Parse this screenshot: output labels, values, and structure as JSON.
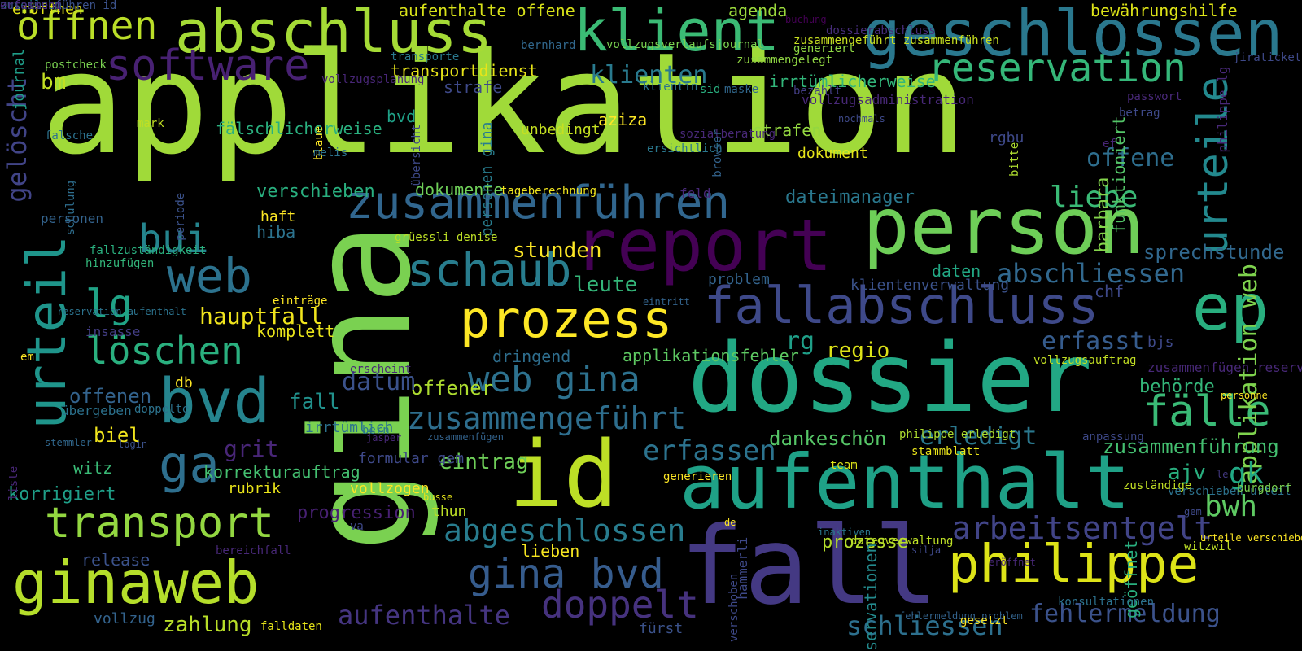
{
  "words": [
    {
      "text": "applikation",
      "color": "#a0da39",
      "rot": 0
    },
    {
      "text": "gina",
      "color": "#7ad151",
      "rot": 90
    },
    {
      "text": "person",
      "color": "#6ece58",
      "rot": 0
    },
    {
      "text": "dossier",
      "color": "#22a884",
      "rot": 0
    },
    {
      "text": "fall",
      "color": "#443983",
      "rot": 0
    },
    {
      "text": "aufenthalt",
      "color": "#1fa187",
      "rot": 0
    },
    {
      "text": "id",
      "color": "#bddf26",
      "rot": 0
    },
    {
      "text": "report",
      "color": "#440154",
      "rot": 0
    },
    {
      "text": "geschlossen",
      "color": "#2a788e",
      "rot": 0
    },
    {
      "text": "abschluss",
      "color": "#a5db36",
      "rot": 0
    },
    {
      "text": "klient",
      "color": "#3bbb75",
      "rot": 0
    },
    {
      "text": "urteil",
      "color": "#1f958b",
      "rot": 90
    },
    {
      "text": "ginaweb",
      "color": "#b5de2b",
      "rot": 0
    },
    {
      "text": "bvd",
      "color": "#25848e",
      "rot": 0
    },
    {
      "text": "web",
      "color": "#2c728e",
      "rot": 0
    },
    {
      "text": "fallabschluss",
      "color": "#3e4989",
      "rot": 0
    },
    {
      "text": "ep",
      "color": "#29af7f",
      "rot": 0
    },
    {
      "text": "philippe",
      "color": "#dde318",
      "rot": 0
    },
    {
      "text": "prozess",
      "color": "#fde725",
      "rot": 0
    },
    {
      "text": "zusammenführen",
      "color": "#31668e",
      "rot": 0
    },
    {
      "text": "schaub",
      "color": "#287d8e",
      "rot": 0
    },
    {
      "text": "software",
      "color": "#482173",
      "rot": 0
    },
    {
      "text": "öffnen",
      "color": "#bade28",
      "rot": 0
    },
    {
      "text": "reservation",
      "color": "#35b779",
      "rot": 0
    },
    {
      "text": "urteile",
      "color": "#23898e",
      "rot": 90
    },
    {
      "text": "ga",
      "color": "#2e6f8e",
      "rot": 0
    },
    {
      "text": "transport",
      "color": "#93d741",
      "rot": 0
    },
    {
      "text": "doppelt",
      "color": "#46327e",
      "rot": 0
    },
    {
      "text": "gina bvd",
      "color": "#365c8d",
      "rot": 0
    },
    {
      "text": "web gina",
      "color": "#2d718e",
      "rot": 0
    },
    {
      "text": "löschen",
      "color": "#2ab07f",
      "rot": 0
    },
    {
      "text": "bui",
      "color": "#25858e",
      "rot": 0
    },
    {
      "text": "lg",
      "color": "#20a386",
      "rot": 0
    },
    {
      "text": "fälle",
      "color": "#3aba76",
      "rot": 0
    },
    {
      "text": "zusammengeführt",
      "color": "#2e6e8e",
      "rot": 0
    },
    {
      "text": "abgeschlossen",
      "color": "#287c8e",
      "rot": 0
    },
    {
      "text": "arbeitsentgelt",
      "color": "#414487",
      "rot": 0
    },
    {
      "text": "applikation web",
      "color": "#7fd34e",
      "rot": 90
    },
    {
      "text": "klienten",
      "color": "#297a8e",
      "rot": 0
    },
    {
      "text": "abschliessen",
      "color": "#31688e",
      "rot": 0
    },
    {
      "text": "fehlermeldung",
      "color": "#3b528b",
      "rot": 0
    },
    {
      "text": "erfassen",
      "color": "#2c738e",
      "rot": 0
    },
    {
      "text": "aufenthalte",
      "color": "#453581",
      "rot": 0
    },
    {
      "text": "schliessen",
      "color": "#2d708e",
      "rot": 0
    },
    {
      "text": "hauptfall",
      "color": "#f1e51d",
      "rot": 0
    },
    {
      "text": "liebe",
      "color": "#3aba76",
      "rot": 0
    },
    {
      "text": "bwh",
      "color": "#5ec962",
      "rot": 0
    },
    {
      "text": "gk",
      "color": "#22a884",
      "rot": 0
    },
    {
      "text": "gelöscht",
      "color": "#414487",
      "rot": 90
    },
    {
      "text": "erledigt",
      "color": "#2a788e",
      "rot": 0
    },
    {
      "text": "erfasst",
      "color": "#365c8d",
      "rot": 0
    },
    {
      "text": "rg",
      "color": "#1f9f88",
      "rot": 0
    },
    {
      "text": "stunden",
      "color": "#fde725",
      "rot": 0
    },
    {
      "text": "eintrag",
      "color": "#6ece58",
      "rot": 0
    },
    {
      "text": "grit",
      "color": "#482677",
      "rot": 0
    },
    {
      "text": "leute",
      "color": "#34b679",
      "rot": 0
    },
    {
      "text": "regio",
      "color": "#dde318",
      "rot": 0
    },
    {
      "text": "ajv",
      "color": "#29af7f",
      "rot": 0
    },
    {
      "text": "zusammenführung",
      "color": "#44bf70",
      "rot": 0
    },
    {
      "text": "offene",
      "color": "#2e6e8e",
      "rot": 0
    },
    {
      "text": "dateimanager",
      "color": "#2a788e",
      "rot": 0
    },
    {
      "text": "verschieben",
      "color": "#29af7f",
      "rot": 0
    },
    {
      "text": "dokumente",
      "color": "#6ece58",
      "rot": 0
    },
    {
      "text": "biel",
      "color": "#f1e51d",
      "rot": 0
    },
    {
      "text": "bm",
      "color": "#c2df23",
      "rot": 0
    },
    {
      "text": "offenen",
      "color": "#33638d",
      "rot": 0
    },
    {
      "text": "dankeschön",
      "color": "#56c667",
      "rot": 0
    },
    {
      "text": "zahlung",
      "color": "#b8de29",
      "rot": 0
    },
    {
      "text": "korrigiert",
      "color": "#1f9f88",
      "rot": 0
    },
    {
      "text": "progression",
      "color": "#482173",
      "rot": 0
    },
    {
      "text": "offener",
      "color": "#addc30",
      "rot": 0
    },
    {
      "text": "barbara",
      "color": "#84d44b",
      "rot": 90
    },
    {
      "text": "behörde",
      "color": "#34b679",
      "rot": 0
    },
    {
      "text": "sprechstunde",
      "color": "#31688e",
      "rot": 0
    },
    {
      "text": "fälschlicherweise",
      "color": "#2ab07f",
      "rot": 0
    },
    {
      "text": "funktioniert",
      "color": "#54c568",
      "rot": 90
    },
    {
      "text": "release",
      "color": "#3b528b",
      "rot": 0
    },
    {
      "text": "korrekturauftrag",
      "color": "#44bf70",
      "rot": 0
    },
    {
      "text": "irrtümlicherweise",
      "color": "#32b67a",
      "rot": 0
    },
    {
      "text": "strafe",
      "color": "#3e4989",
      "rot": 0
    },
    {
      "text": "strafen",
      "color": "#93d741",
      "rot": 0
    },
    {
      "text": "aziza",
      "color": "#fde725",
      "rot": 0
    },
    {
      "text": "dokument",
      "color": "#e5e419",
      "rot": 0
    },
    {
      "text": "daten",
      "color": "#22a884",
      "rot": 0
    },
    {
      "text": "chf",
      "color": "#3e4989",
      "rot": 0
    },
    {
      "text": "datum",
      "color": "#3b528b",
      "rot": 0
    },
    {
      "text": "fall",
      "color": "#21918c",
      "rot": 0
    },
    {
      "text": "bvd",
      "color": "#1fa187",
      "rot": 0
    },
    {
      "text": "agenda",
      "color": "#9bd93c",
      "rot": 0
    },
    {
      "text": "bewährungshilfe",
      "color": "#dde318",
      "rot": 0
    },
    {
      "text": "transportdienst",
      "color": "#e7e419",
      "rot": 0
    },
    {
      "text": "unbedingt",
      "color": "#c5e021",
      "rot": 0
    },
    {
      "text": "personen gina",
      "color": "#287d8e",
      "rot": 90
    },
    {
      "text": "bjs",
      "color": "#3e4989",
      "rot": 0
    },
    {
      "text": "hiba",
      "color": "#2c738e",
      "rot": 0
    },
    {
      "text": "haft",
      "color": "#fde725",
      "rot": 0
    },
    {
      "text": "komplett",
      "color": "#eae51a",
      "rot": 0
    },
    {
      "text": "applikationsfehler",
      "color": "#5ec962",
      "rot": 0
    },
    {
      "text": "problem",
      "color": "#33638d",
      "rot": 0
    },
    {
      "text": "klientenverwaltung",
      "color": "#3b528b",
      "rot": 0
    },
    {
      "text": "dringend",
      "color": "#2e6e8e",
      "rot": 0
    },
    {
      "text": "formular gem",
      "color": "#3e4989",
      "rot": 0
    },
    {
      "text": "rubrik",
      "color": "#eae51a",
      "rot": 0
    },
    {
      "text": "vollzogen",
      "color": "#fde725",
      "rot": 0
    },
    {
      "text": "thun",
      "color": "#bddf26",
      "rot": 0
    },
    {
      "text": "irrtümlich",
      "color": "#2c728e",
      "rot": 0
    },
    {
      "text": "witz",
      "color": "#3aba76",
      "rot": 0
    },
    {
      "text": "lieben",
      "color": "#f6e620",
      "rot": 0
    },
    {
      "text": "prozesse",
      "color": "#b5de2b",
      "rot": 0
    },
    {
      "text": "reservationen",
      "color": "#238a8d",
      "rot": 90
    },
    {
      "text": "geöffnet",
      "color": "#29af7f",
      "rot": 90
    },
    {
      "text": "journal",
      "color": "#1f9e89",
      "rot": 90
    },
    {
      "text": "eröffnen",
      "color": "#e2e418",
      "rot": 0
    },
    {
      "text": "aufenthalte offene",
      "color": "#d8e219",
      "rot": 0
    },
    {
      "text": "dossierabschluss",
      "color": "#472d7b",
      "rot": 0
    },
    {
      "text": "zusammengeführt zusammenführen",
      "color": "#c8e020",
      "rot": 0
    },
    {
      "text": "generiert",
      "color": "#8fd744",
      "rot": 0
    },
    {
      "text": "buchung",
      "color": "#440154",
      "rot": 0
    },
    {
      "text": "zusammengelegt",
      "color": "#90d743",
      "rot": 0
    },
    {
      "text": "bernhard",
      "color": "#31688e",
      "rot": 0
    },
    {
      "text": "vollzugsverlaufsjournal",
      "color": "#7ad151",
      "rot": 0
    },
    {
      "text": "transporte",
      "color": "#2a788e",
      "rot": 0
    },
    {
      "text": "sid",
      "color": "#29af7f",
      "rot": 0
    },
    {
      "text": "klientin",
      "color": "#2c738e",
      "rot": 0
    },
    {
      "text": "maske",
      "color": "#31688e",
      "rot": 0
    },
    {
      "text": "bezahlt",
      "color": "#433e85",
      "rot": 0
    },
    {
      "text": "vollzugsadministration",
      "color": "#482878",
      "rot": 0
    },
    {
      "text": "nochmals",
      "color": "#3e4989",
      "rot": 0
    },
    {
      "text": "vollzugsplanung",
      "color": "#482677",
      "rot": 0
    },
    {
      "text": "blaue",
      "color": "#fde725",
      "rot": 90
    },
    {
      "text": "übersicht",
      "color": "#3e4989",
      "rot": 90
    },
    {
      "text": "melis",
      "color": "#2c738e",
      "rot": 0
    },
    {
      "text": "mark",
      "color": "#c2df23",
      "rot": 0
    },
    {
      "text": "falsche",
      "color": "#2c728e",
      "rot": 0
    },
    {
      "text": "schulung",
      "color": "#2e6e8e",
      "rot": 90
    },
    {
      "text": "periode",
      "color": "#3b528b",
      "rot": 90
    },
    {
      "text": "tageberechnung",
      "color": "#f1e51d",
      "rot": 0
    },
    {
      "text": "feld",
      "color": "#482878",
      "rot": 0
    },
    {
      "text": "sozialberatung",
      "color": "#482878",
      "rot": 0
    },
    {
      "text": "ersichtlich",
      "color": "#2a788e",
      "rot": 0
    },
    {
      "text": "browser",
      "color": "#33638d",
      "rot": 90
    },
    {
      "text": "rgbu",
      "color": "#3e4989",
      "rot": 0
    },
    {
      "text": "ef",
      "color": "#482677",
      "rot": 0
    },
    {
      "text": "bitte",
      "color": "#addc30",
      "rot": 90
    },
    {
      "text": "jiraticket",
      "color": "#3e4989",
      "rot": 0
    },
    {
      "text": "philippe lg",
      "color": "#482878",
      "rot": 90
    },
    {
      "text": "passwort",
      "color": "#482878",
      "rot": 0
    },
    {
      "text": "betrag",
      "color": "#3e4989",
      "rot": 0
    },
    {
      "text": "personen",
      "color": "#33638d",
      "rot": 0
    },
    {
      "text": "fallzuständigkeit",
      "color": "#2ab07f",
      "rot": 0
    },
    {
      "text": "stemmler",
      "color": "#31688e",
      "rot": 0
    },
    {
      "text": "hinzufügen",
      "color": "#32b67a",
      "rot": 0
    },
    {
      "text": "grüessli denise",
      "color": "#bddf26",
      "rot": 0
    },
    {
      "text": "einträge",
      "color": "#fde725",
      "rot": 0
    },
    {
      "text": "eintritt",
      "color": "#33638d",
      "rot": 0
    },
    {
      "text": "reservation aufenthalt",
      "color": "#2c738e",
      "rot": 0
    },
    {
      "text": "insasse",
      "color": "#433e85",
      "rot": 0
    },
    {
      "text": "em",
      "color": "#fde725",
      "rot": 0
    },
    {
      "text": "db",
      "color": "#fde725",
      "rot": 0
    },
    {
      "text": "doppelte",
      "color": "#2c738e",
      "rot": 0
    },
    {
      "text": "erscheint",
      "color": "#482878",
      "rot": 0
    },
    {
      "text": "übergeben",
      "color": "#2c728e",
      "rot": 0
    },
    {
      "text": "bern",
      "color": "#2a788e",
      "rot": 0
    },
    {
      "text": "jasper",
      "color": "#482878",
      "rot": 0
    },
    {
      "text": "zusammenfügen",
      "color": "#33638d",
      "rot": 0
    },
    {
      "text": "login",
      "color": "#3b528b",
      "rot": 0
    },
    {
      "text": "liste",
      "color": "#482677",
      "rot": 90
    },
    {
      "text": "vollzugsauftrag",
      "color": "#c2df23",
      "rot": 0
    },
    {
      "text": "zusammenfügen reservation",
      "color": "#482878",
      "rot": 0
    },
    {
      "text": "personne",
      "color": "#fde725",
      "rot": 0
    },
    {
      "text": "philippe erledigt",
      "color": "#addc30",
      "rot": 0
    },
    {
      "text": "stammblatt",
      "color": "#eae51a",
      "rot": 0
    },
    {
      "text": "anpassung",
      "color": "#3e4989",
      "rot": 0
    },
    {
      "text": "team",
      "color": "#dde318",
      "rot": 0
    },
    {
      "text": "generieren",
      "color": "#fde725",
      "rot": 0
    },
    {
      "text": "zuständige",
      "color": "#c2df23",
      "rot": 0
    },
    {
      "text": "verschieben urteil",
      "color": "#2c728e",
      "rot": 0
    },
    {
      "text": "le",
      "color": "#443983",
      "rot": 0
    },
    {
      "text": "burgdorf",
      "color": "#7ad151",
      "rot": 0
    },
    {
      "text": "gem",
      "color": "#3e4989",
      "rot": 0
    },
    {
      "text": "busse",
      "color": "#e5e419",
      "rot": 0
    },
    {
      "text": "de",
      "color": "#fde725",
      "rot": 0
    },
    {
      "text": "va",
      "color": "#3e4989",
      "rot": 0
    },
    {
      "text": "bereichfall",
      "color": "#482878",
      "rot": 0
    },
    {
      "text": "hammerli",
      "color": "#3e4989",
      "rot": 90
    },
    {
      "text": "inaktiven",
      "color": "#2a788e",
      "rot": 0
    },
    {
      "text": "datenverwaltung",
      "color": "#bddf26",
      "rot": 0
    },
    {
      "text": "silja",
      "color": "#3e4989",
      "rot": 0
    },
    {
      "text": "verschoben",
      "color": "#3e4989",
      "rot": 90
    },
    {
      "text": "fehlermeldung problem",
      "color": "#33638d",
      "rot": 0
    },
    {
      "text": "gesetzt",
      "color": "#fde725",
      "rot": 0
    },
    {
      "text": "eröffnet",
      "color": "#482878",
      "rot": 0
    },
    {
      "text": "konsultationen",
      "color": "#2c728e",
      "rot": 0
    },
    {
      "text": "witzwil",
      "color": "#bddf26",
      "rot": 0
    },
    {
      "text": "urteile verschieben",
      "color": "#fde725",
      "rot": 0
    },
    {
      "text": "vollzug",
      "color": "#33638d",
      "rot": 0
    },
    {
      "text": "falldaten",
      "color": "#e5e419",
      "rot": 0
    },
    {
      "text": "fürst",
      "color": "#3b528b",
      "rot": 0
    },
    {
      "text": "postcheck",
      "color": "#7ad151",
      "rot": 0
    },
    {
      "text": "urteil bm",
      "color": "#2c738e",
      "rot": 0
    },
    {
      "text": "zusammenführen id",
      "color": "#3b528b",
      "rot": 0
    },
    {
      "text": "erfassung",
      "color": "#482878",
      "rot": 0
    }
  ]
}
